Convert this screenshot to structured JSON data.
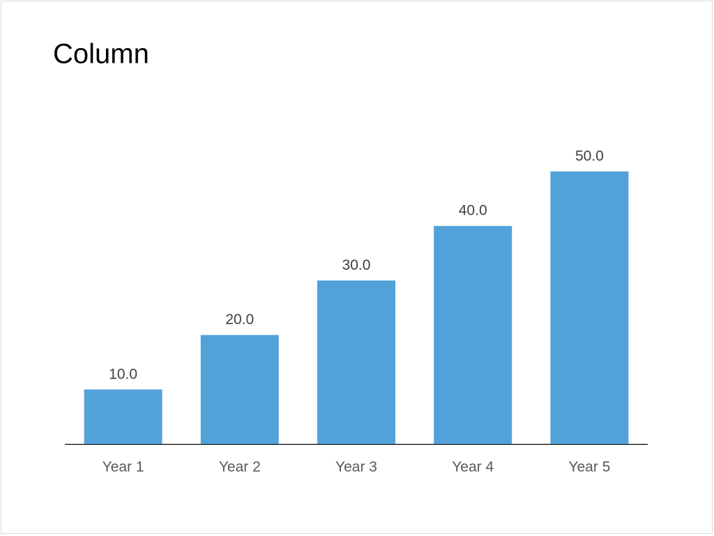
{
  "chart_data": {
    "type": "bar",
    "title": "Column",
    "categories": [
      "Year 1",
      "Year 2",
      "Year 3",
      "Year 4",
      "Year 5"
    ],
    "values": [
      10,
      20,
      30,
      40,
      50
    ],
    "value_labels": [
      "10.0",
      "20.0",
      "30.0",
      "40.0",
      "50.0"
    ],
    "color": "#52a2da"
  }
}
